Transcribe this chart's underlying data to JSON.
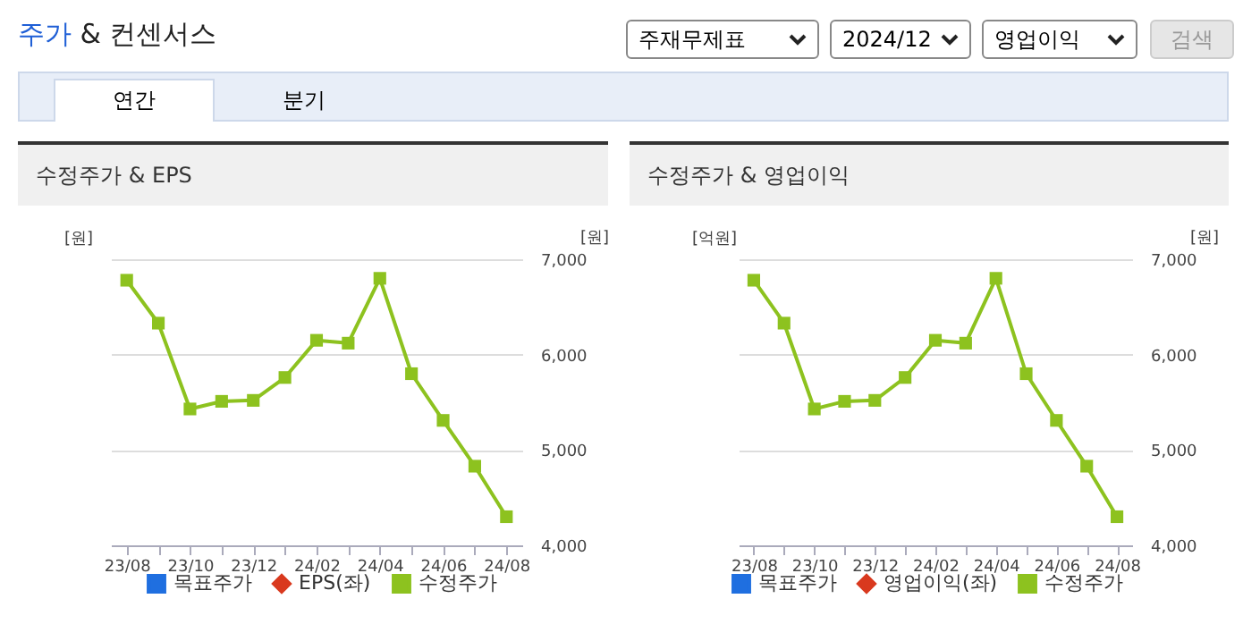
{
  "chart_data": [
    {
      "type": "other",
      "title": "주가 & 컨센서스",
      "annotations": [
        "주재무제표",
        "2024/12",
        "영업이익",
        "검색",
        "연간",
        "분기"
      ]
    },
    {
      "type": "line",
      "title": "수정주가 & EPS",
      "ylabel": "[원]",
      "y2label": "[원]",
      "categories": [
        "23/08",
        null,
        "23/10",
        null,
        "23/12",
        null,
        "24/02",
        null,
        "24/04",
        null,
        "24/06",
        null,
        "24/08"
      ],
      "series": [
        {
          "name": "목표주가",
          "color": "#1f6fe0",
          "marker": "square",
          "values": [
            null,
            null,
            null,
            null,
            null,
            null,
            null,
            null,
            null,
            null,
            null,
            null,
            null
          ]
        },
        {
          "name": "EPS(좌)",
          "color": "#d9391e",
          "marker": "diamond",
          "values": [
            null,
            null,
            null,
            null,
            null,
            null,
            null,
            null,
            null,
            null,
            null,
            null,
            null
          ]
        },
        {
          "name": "수정주가",
          "color": "#8dc21f",
          "axis": "y2",
          "marker": "square",
          "values": [
            6780,
            6330,
            5430,
            5510,
            5520,
            5760,
            6150,
            6120,
            6800,
            5800,
            5310,
            4830,
            4300
          ]
        }
      ],
      "y2lim": [
        4000,
        7000
      ],
      "y2ticks": [
        {
          "value": 4000,
          "label": "4,000"
        },
        {
          "value": 5000,
          "label": "5,000"
        },
        {
          "value": 6000,
          "label": "6,000"
        },
        {
          "value": 7000,
          "label": "7,000"
        }
      ],
      "grid": "y",
      "legend": "bottom"
    },
    {
      "type": "line",
      "title": "수정주가 & 영업이익",
      "ylabel": "[억원]",
      "y2label": "[원]",
      "categories": [
        "23/08",
        null,
        "23/10",
        null,
        "23/12",
        null,
        "24/02",
        null,
        "24/04",
        null,
        "24/06",
        null,
        "24/08"
      ],
      "series": [
        {
          "name": "목표주가",
          "color": "#1f6fe0",
          "marker": "square",
          "values": [
            null,
            null,
            null,
            null,
            null,
            null,
            null,
            null,
            null,
            null,
            null,
            null,
            null
          ]
        },
        {
          "name": "영업이익(좌)",
          "color": "#d9391e",
          "marker": "diamond",
          "values": [
            null,
            null,
            null,
            null,
            null,
            null,
            null,
            null,
            null,
            null,
            null,
            null,
            null
          ]
        },
        {
          "name": "수정주가",
          "color": "#8dc21f",
          "axis": "y2",
          "marker": "square",
          "values": [
            6780,
            6330,
            5430,
            5510,
            5520,
            5760,
            6150,
            6120,
            6800,
            5800,
            5310,
            4830,
            4300
          ]
        }
      ],
      "y2lim": [
        4000,
        7000
      ],
      "y2ticks": [
        {
          "value": 4000,
          "label": "4,000"
        },
        {
          "value": 5000,
          "label": "5,000"
        },
        {
          "value": 6000,
          "label": "6,000"
        },
        {
          "value": 7000,
          "label": "7,000"
        }
      ],
      "grid": "y",
      "legend": "bottom"
    }
  ]
}
